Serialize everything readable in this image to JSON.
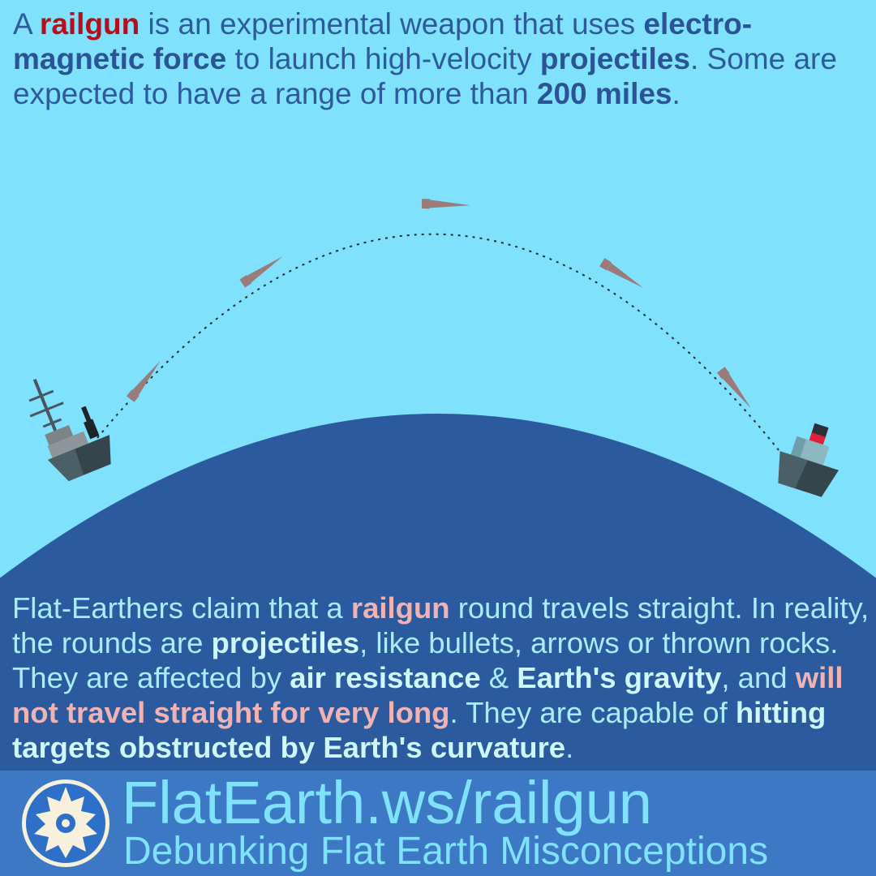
{
  "intro": {
    "t1": "A ",
    "railgun": "railgun",
    "t2": " is an experimental weapon that uses ",
    "b1": "electro-magnetic force",
    "t3": " to launch high-velocity ",
    "b2": "projectiles",
    "t4": ". Some are expected to have a range of more than ",
    "b3": "200 miles",
    "t5": "."
  },
  "claim": {
    "t1": "Flat-Earthers claim that a ",
    "p1": "railgun",
    "t2": " round travels straight. In reality, the rounds are ",
    "b1": "projectiles",
    "t3": ", like bullets, arrows or thrown rocks. They are affected by ",
    "b2": "air resistance",
    "t4": " & ",
    "b3": "Earth's gravity",
    "t5": ", and ",
    "p2": "will not travel straight for very long",
    "t6": ". They are capable of ",
    "b4": "hitting targets obstructed by Earth's curvature",
    "t7": "."
  },
  "footer": {
    "url": "FlatEarth.ws/railgun",
    "tagline": "Debunking Flat Earth Misconceptions"
  },
  "colors": {
    "sky": "#7fe1fc",
    "earth": "#2b5a9f",
    "footer": "#3d78c4",
    "projectile": "#9b7a7a",
    "highlight_red": "#b50f1e",
    "highlight_pink": "#f0b2b2"
  }
}
